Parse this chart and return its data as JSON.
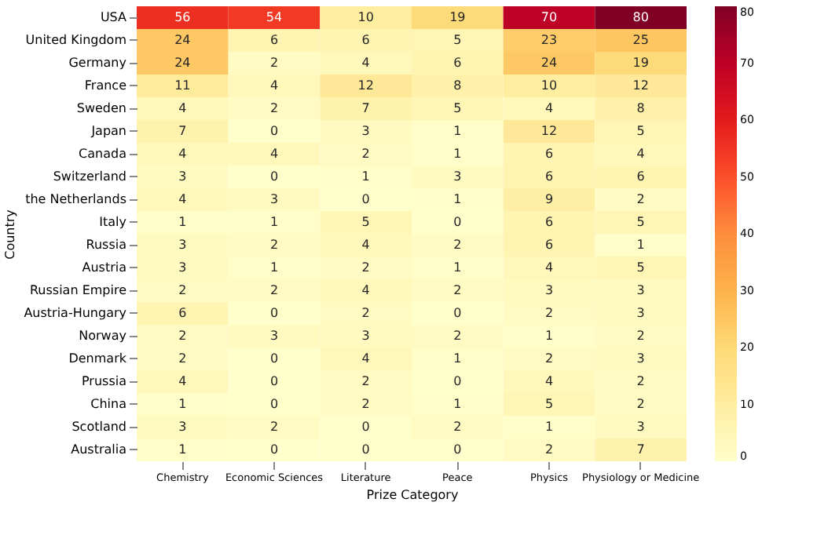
{
  "chart_data": {
    "type": "heatmap",
    "xlabel": "Prize Category",
    "ylabel": "Country",
    "categories": [
      "Chemistry",
      "Economic Sciences",
      "Literature",
      "Peace",
      "Physics",
      "Physiology or Medicine"
    ],
    "y_categories": [
      "USA",
      "United Kingdom",
      "Germany",
      "France",
      "Sweden",
      "Japan",
      "Canada",
      "Switzerland",
      "the Netherlands",
      "Italy",
      "Russia",
      "Austria",
      "Russian Empire",
      "Austria-Hungary",
      "Norway",
      "Denmark",
      "Prussia",
      "China",
      "Scotland",
      "Australia"
    ],
    "cells": [
      [
        56,
        54,
        10,
        19,
        70,
        80
      ],
      [
        24,
        6,
        6,
        5,
        23,
        25
      ],
      [
        24,
        2,
        4,
        6,
        24,
        19
      ],
      [
        11,
        4,
        12,
        8,
        10,
        12
      ],
      [
        4,
        2,
        7,
        5,
        4,
        8
      ],
      [
        7,
        0,
        3,
        1,
        12,
        5
      ],
      [
        4,
        4,
        2,
        1,
        6,
        4
      ],
      [
        3,
        0,
        1,
        3,
        6,
        6
      ],
      [
        4,
        3,
        0,
        1,
        9,
        2
      ],
      [
        1,
        1,
        5,
        0,
        6,
        5
      ],
      [
        3,
        2,
        4,
        2,
        6,
        1
      ],
      [
        3,
        1,
        2,
        1,
        4,
        5
      ],
      [
        2,
        2,
        4,
        2,
        3,
        3
      ],
      [
        6,
        0,
        2,
        0,
        2,
        3
      ],
      [
        2,
        3,
        3,
        2,
        1,
        2
      ],
      [
        2,
        0,
        4,
        1,
        2,
        3
      ],
      [
        4,
        0,
        2,
        0,
        4,
        2
      ],
      [
        1,
        0,
        2,
        1,
        5,
        2
      ],
      [
        3,
        2,
        0,
        2,
        1,
        3
      ],
      [
        1,
        0,
        0,
        0,
        2,
        7
      ]
    ],
    "clim": [
      0,
      80
    ],
    "cticks": [
      0,
      10,
      20,
      30,
      40,
      50,
      60,
      70,
      80
    ],
    "data_labels": true,
    "grid": false
  }
}
